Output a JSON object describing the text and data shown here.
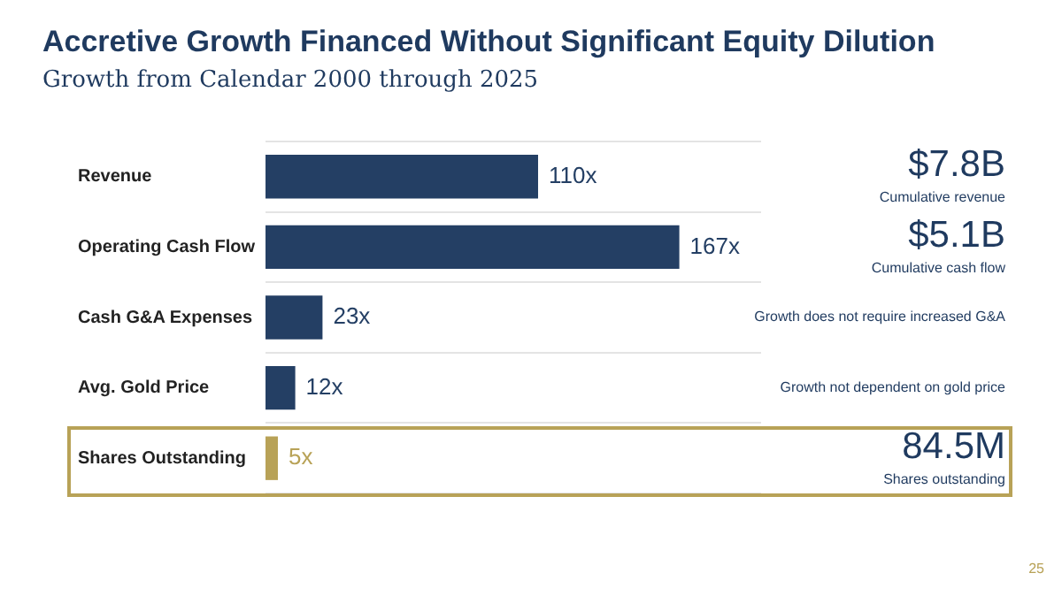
{
  "chart_data": {
    "type": "bar",
    "orientation": "horizontal",
    "title": "Accretive Growth Financed Without Significant Equity Dilution",
    "subtitle": "Growth from Calendar 2000 through 2025",
    "categories": [
      "Revenue",
      "Operating Cash Flow",
      "Cash G&A Expenses",
      "Avg. Gold Price",
      "Shares Outstanding"
    ],
    "values": [
      110,
      167,
      23,
      12,
      5
    ],
    "colors": [
      "#243f64",
      "#243f64",
      "#243f64",
      "#243f64",
      "#b8a257"
    ],
    "value_labels": [
      "110x",
      "167x",
      "23x",
      "12x",
      "5x"
    ],
    "grid": "y",
    "legend": false,
    "tick_labels": "y",
    "annotations": [
      "$7.8B",
      "Cumulative revenue",
      "$5.1B",
      "Cumulative cash flow",
      "Growth does not require increased G&A",
      "Growth not dependent on gold price",
      "84.5M",
      "Shares outstanding",
      "25"
    ]
  }
}
